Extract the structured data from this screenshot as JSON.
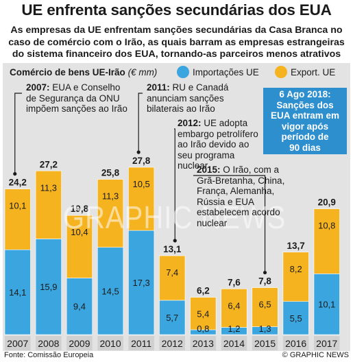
{
  "header": {
    "title": "UE enfrenta sanções secundárias dos EUA",
    "subtitle": "As empresas da UE enfrentam sanções secundárias da Casa Branca no caso de comércio com o Irão, as quais barram as empresas estrangeiras do sistema financeiro dos EUA, tornando-as parceiros menos atrativos"
  },
  "chart_label": "Comércio de bens UE-Irão",
  "chart_unit": "(€ mm)",
  "legend": {
    "imports": "Importações UE",
    "exports": "Export. UE"
  },
  "colors": {
    "imports": "#3aa5df",
    "exports": "#f6b320",
    "callout": "#2e8fcf",
    "year_bar": "#d0d0d0"
  },
  "callout": "6 Ago 2018:\nSanções dos\nEUA entram em\nvigor após\nperíodo de\n90 dias",
  "notes": [
    {
      "year": "2007:",
      "text": " EUA e Conselho de Segurança da ONU impõem sanções ao Irão"
    },
    {
      "year": "2011:",
      "text": " RU e Canadá anunciam sanções bilaterais ao Irão"
    },
    {
      "year": "2012:",
      "text": " UE adopta embargo petrolífero ao Irão devido ao seu programa nuclear"
    },
    {
      "year": "2015:",
      "text": " O Irão, com a Grã-Bretanha, China, França, Alemanha, Rússia e EUA estabelecem acordo nuclear"
    }
  ],
  "watermark": "GRAPHIC NEWS",
  "source": "Fonte: Comissão Europeia",
  "credit": "© GRAPHIC NEWS",
  "chart_data": {
    "type": "bar",
    "stacked": true,
    "categories": [
      "2007",
      "2008",
      "2009",
      "2010",
      "2011",
      "2012",
      "2013",
      "2014",
      "2015",
      "2016",
      "2017"
    ],
    "series": [
      {
        "name": "Importações UE",
        "values": [
          14.1,
          15.9,
          9.4,
          14.5,
          17.3,
          5.7,
          0.8,
          1.2,
          1.3,
          5.5,
          10.1
        ]
      },
      {
        "name": "Export. UE",
        "values": [
          10.1,
          11.3,
          10.4,
          11.3,
          10.5,
          7.4,
          5.4,
          6.4,
          6.5,
          8.2,
          10.8
        ]
      }
    ],
    "totals": [
      24.2,
      27.2,
      19.8,
      25.8,
      27.8,
      13.1,
      6.2,
      7.6,
      7.8,
      13.7,
      20.9
    ],
    "ylim": [
      0,
      27.8
    ],
    "grid": false,
    "legend_position": "top-right"
  }
}
